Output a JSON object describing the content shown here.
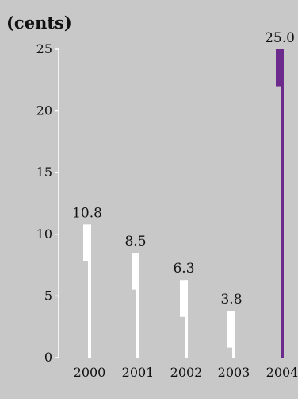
{
  "chart_data": {
    "type": "bar",
    "unit_label": "(cents)",
    "categories": [
      "2000",
      "2001",
      "2002",
      "2003",
      "2004"
    ],
    "values": [
      10.8,
      8.5,
      6.3,
      3.8,
      25.0
    ],
    "value_labels": [
      "10.8",
      "8.5",
      "6.3",
      "3.8",
      "25.0"
    ],
    "highlight_index": 4,
    "ylim": [
      0,
      25
    ],
    "yticks": [
      0,
      5,
      10,
      15,
      20,
      25
    ],
    "ytick_labels": [
      "0",
      "5",
      "10",
      "15",
      "20",
      "25"
    ],
    "xlabel": "",
    "ylabel": "",
    "grid": false,
    "colors": {
      "background": "#c8c8c8",
      "bar": "#ffffff",
      "highlight": "#6b2a8c",
      "axis": "#ffffff",
      "text": "#111111"
    }
  }
}
